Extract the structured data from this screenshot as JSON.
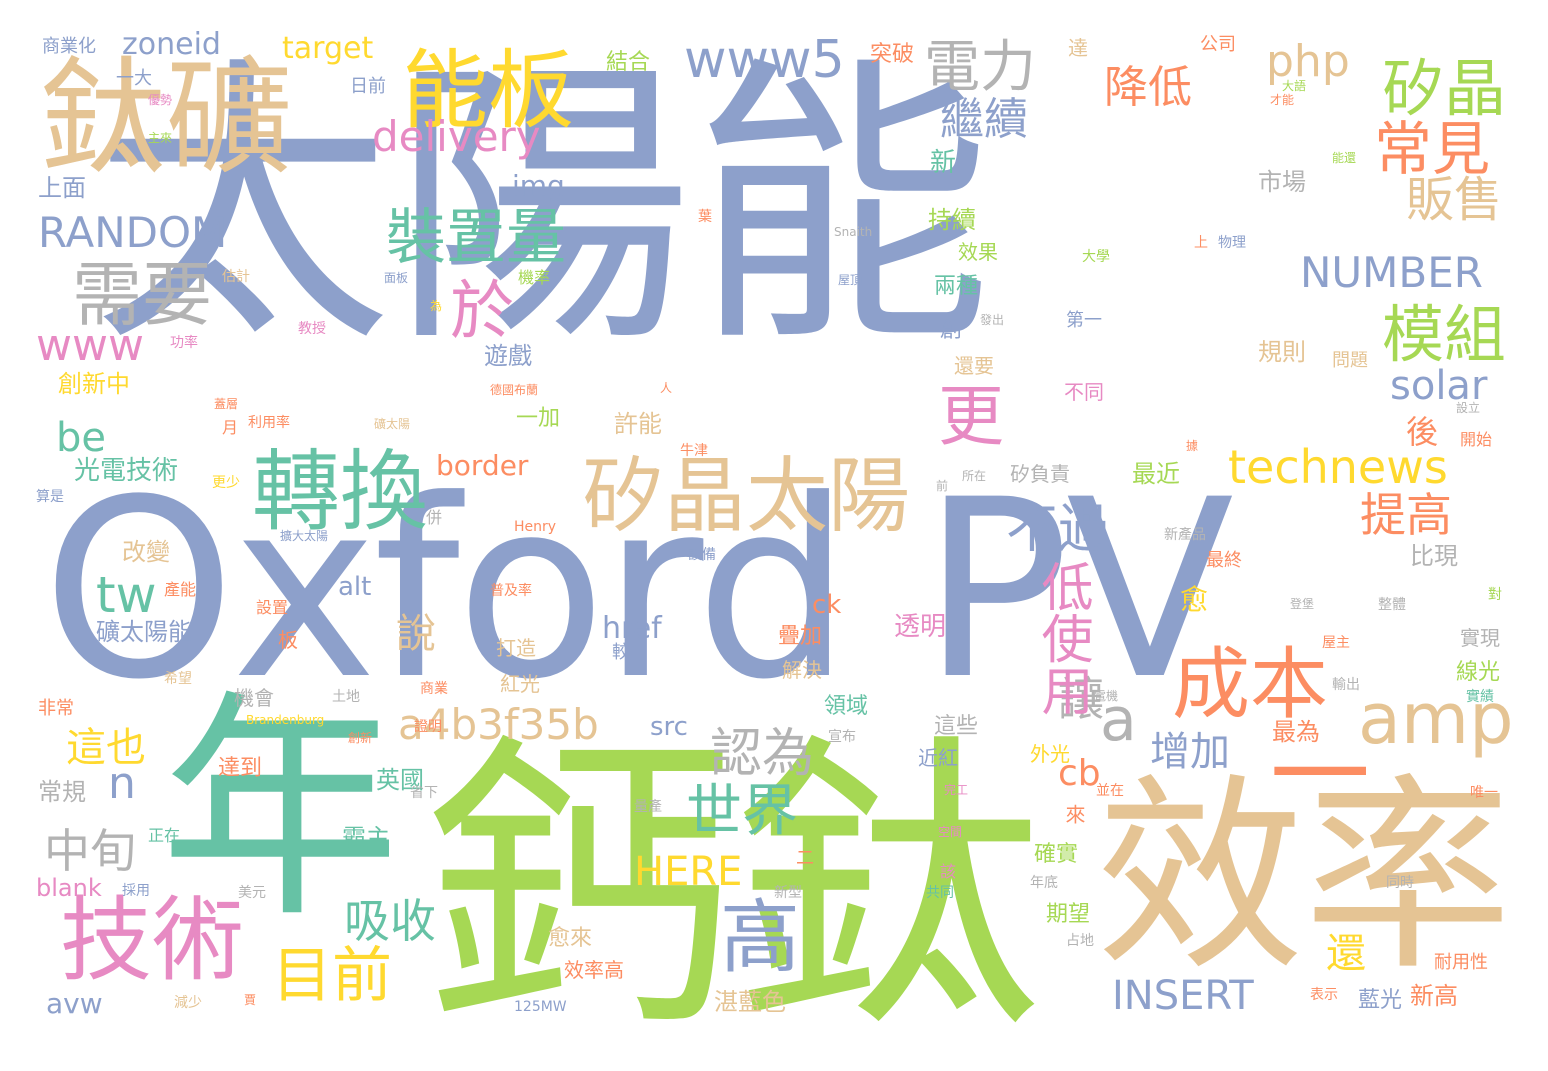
{
  "palette": {
    "blue": "#8DA0CB",
    "green": "#A6D854",
    "teal": "#66C2A5",
    "tan": "#E5C494",
    "orange": "#FC8D62",
    "pink": "#E78AC3",
    "yellow": "#FFD92F",
    "gray": "#B3B3B3"
  },
  "words": [
    {
      "text": "太陽能",
      "color": "blue",
      "orient": "h"
    },
    {
      "text": "Oxford PV",
      "color": "blue",
      "orient": "h"
    },
    {
      "text": "鈣鈦",
      "color": "green",
      "orient": "h"
    },
    {
      "text": "年",
      "color": "teal",
      "orient": "h"
    },
    {
      "text": "效率",
      "color": "tan",
      "orient": "h"
    },
    {
      "text": "一",
      "color": "orange",
      "orient": "h"
    },
    {
      "text": "鈦礦",
      "color": "tan",
      "orient": "h"
    },
    {
      "text": "技術",
      "color": "pink",
      "orient": "h"
    },
    {
      "text": "能板",
      "color": "yellow",
      "orient": "h"
    },
    {
      "text": "矽晶太陽",
      "color": "tan",
      "orient": "h"
    },
    {
      "text": "轉換",
      "color": "teal",
      "orient": "h"
    },
    {
      "text": "成本",
      "color": "orange",
      "orient": "h"
    },
    {
      "text": "需要",
      "color": "gray",
      "orient": "h"
    },
    {
      "text": "高",
      "color": "blue",
      "orient": "h"
    },
    {
      "text": "amp",
      "color": "tan",
      "orient": "h"
    },
    {
      "text": "矽晶",
      "color": "green",
      "orient": "h"
    },
    {
      "text": "www5",
      "color": "blue",
      "orient": "h"
    },
    {
      "text": "電力",
      "color": "gray",
      "orient": "h"
    },
    {
      "text": "裝置量",
      "color": "teal",
      "orient": "h"
    },
    {
      "text": "常見",
      "color": "orange",
      "orient": "h"
    },
    {
      "text": "模組",
      "color": "green",
      "orient": "h"
    },
    {
      "text": "technews",
      "color": "yellow",
      "orient": "h"
    },
    {
      "text": "世界",
      "color": "teal",
      "orient": "h"
    },
    {
      "text": "目前",
      "color": "yellow",
      "orient": "h"
    },
    {
      "text": "認為",
      "color": "gray",
      "orient": "h"
    },
    {
      "text": "a4b3f35b",
      "color": "tan",
      "orient": "h"
    },
    {
      "text": "不過",
      "color": "blue",
      "orient": "h"
    },
    {
      "text": "販售",
      "color": "tan",
      "orient": "h"
    },
    {
      "text": "提高",
      "color": "orange",
      "orient": "h"
    },
    {
      "text": "NUMBER",
      "color": "blue",
      "orient": "h"
    },
    {
      "text": "RANDOM",
      "color": "blue",
      "orient": "h"
    },
    {
      "text": "delivery",
      "color": "pink",
      "orient": "h"
    },
    {
      "text": "吸收",
      "color": "teal",
      "orient": "h"
    },
    {
      "text": "降低",
      "color": "orange",
      "orient": "h"
    },
    {
      "text": "繼續",
      "color": "blue",
      "orient": "h"
    },
    {
      "text": "INSERT",
      "color": "blue",
      "orient": "h"
    },
    {
      "text": "HERE",
      "color": "yellow",
      "orient": "h"
    },
    {
      "text": "增加",
      "color": "blue",
      "orient": "h"
    },
    {
      "text": "中旬",
      "color": "gray",
      "orient": "h"
    },
    {
      "text": "這也",
      "color": "yellow",
      "orient": "h"
    },
    {
      "text": "solar",
      "color": "blue",
      "orient": "h"
    },
    {
      "text": "php",
      "color": "tan",
      "orient": "h"
    },
    {
      "text": "tw",
      "color": "teal",
      "orient": "h"
    },
    {
      "text": "be",
      "color": "teal",
      "orient": "h"
    },
    {
      "text": "www",
      "color": "pink",
      "orient": "h"
    },
    {
      "text": "zoneid",
      "color": "blue",
      "orient": "h"
    },
    {
      "text": "target",
      "color": "yellow",
      "orient": "h"
    },
    {
      "text": "border",
      "color": "orange",
      "orient": "h"
    },
    {
      "text": "光電技術",
      "color": "teal",
      "orient": "h"
    },
    {
      "text": "創新中",
      "color": "yellow",
      "orient": "h"
    },
    {
      "text": "上面",
      "color": "blue",
      "orient": "h"
    },
    {
      "text": "cb",
      "color": "orange",
      "orient": "h"
    },
    {
      "text": "a",
      "color": "gray",
      "orient": "h"
    },
    {
      "text": "n",
      "color": "blue",
      "orient": "h"
    },
    {
      "text": "img",
      "color": "blue",
      "orient": "h"
    },
    {
      "text": "avw",
      "color": "blue",
      "orient": "h"
    },
    {
      "text": "blank",
      "color": "pink",
      "orient": "h"
    },
    {
      "text": "href",
      "color": "blue",
      "orient": "h"
    },
    {
      "text": "alt",
      "color": "blue",
      "orient": "h"
    },
    {
      "text": "src",
      "color": "blue",
      "orient": "h"
    },
    {
      "text": "ck",
      "color": "orange",
      "orient": "h"
    },
    {
      "text": "英國",
      "color": "teal",
      "orient": "h"
    },
    {
      "text": "霸主",
      "color": "teal",
      "orient": "h"
    },
    {
      "text": "常規",
      "color": "gray",
      "orient": "h"
    },
    {
      "text": "改變",
      "color": "tan",
      "orient": "h"
    },
    {
      "text": "礦太陽能",
      "color": "blue",
      "orient": "h"
    },
    {
      "text": "市場",
      "color": "gray",
      "orient": "h"
    },
    {
      "text": "持續",
      "color": "green",
      "orient": "h"
    },
    {
      "text": "效果",
      "color": "green",
      "orient": "h"
    },
    {
      "text": "兩種",
      "color": "teal",
      "orient": "h"
    },
    {
      "text": "遊戲",
      "color": "blue",
      "orient": "h"
    },
    {
      "text": "規則",
      "color": "tan",
      "orient": "h"
    },
    {
      "text": "許能",
      "color": "tan",
      "orient": "h"
    },
    {
      "text": "一加",
      "color": "green",
      "orient": "h"
    },
    {
      "text": "最近",
      "color": "green",
      "orient": "h"
    },
    {
      "text": "比現",
      "color": "gray",
      "orient": "h"
    },
    {
      "text": "線光",
      "color": "green",
      "orient": "h"
    },
    {
      "text": "實現",
      "color": "gray",
      "orient": "h"
    },
    {
      "text": "最為",
      "color": "orange",
      "orient": "h"
    },
    {
      "text": "期望",
      "color": "green",
      "orient": "h"
    },
    {
      "text": "確實",
      "color": "green",
      "orient": "h"
    },
    {
      "text": "這些",
      "color": "gray",
      "orient": "h"
    },
    {
      "text": "近紅",
      "color": "blue",
      "orient": "h"
    },
    {
      "text": "外光",
      "color": "yellow",
      "orient": "h"
    },
    {
      "text": "愈來",
      "color": "tan",
      "orient": "h"
    },
    {
      "text": "效率高",
      "color": "orange",
      "orient": "h"
    },
    {
      "text": "湛藍色",
      "color": "tan",
      "orient": "h"
    },
    {
      "text": "新高",
      "color": "orange",
      "orient": "h"
    },
    {
      "text": "藍光",
      "color": "blue",
      "orient": "h"
    },
    {
      "text": "耐用性",
      "color": "orange",
      "orient": "h"
    },
    {
      "text": "疊加",
      "color": "orange",
      "orient": "h"
    },
    {
      "text": "解決",
      "color": "tan",
      "orient": "h"
    },
    {
      "text": "領域",
      "color": "teal",
      "orient": "h"
    },
    {
      "text": "透明",
      "color": "pink",
      "orient": "h"
    },
    {
      "text": "紅光",
      "color": "tan",
      "orient": "h"
    },
    {
      "text": "打造",
      "color": "tan",
      "orient": "h"
    },
    {
      "text": "達到",
      "color": "orange",
      "orient": "h"
    },
    {
      "text": "還要",
      "color": "tan",
      "orient": "h"
    },
    {
      "text": "不同",
      "color": "pink",
      "orient": "h"
    },
    {
      "text": "問題",
      "color": "tan",
      "orient": "h"
    },
    {
      "text": "第一",
      "color": "blue",
      "orient": "h"
    },
    {
      "text": "最終",
      "color": "orange",
      "orient": "h"
    },
    {
      "text": "矽負責",
      "color": "gray",
      "orient": "h"
    },
    {
      "text": "結合",
      "color": "green",
      "orient": "h"
    },
    {
      "text": "突破",
      "color": "orange",
      "orient": "h"
    },
    {
      "text": "日前",
      "color": "blue",
      "orient": "h"
    },
    {
      "text": "公司",
      "color": "orange",
      "orient": "h"
    },
    {
      "text": "商業化",
      "color": "blue",
      "orient": "h"
    },
    {
      "text": "一大",
      "color": "blue",
      "orient": "h"
    },
    {
      "text": "新",
      "color": "teal",
      "orient": "h"
    },
    {
      "text": "達",
      "color": "tan",
      "orient": "h"
    },
    {
      "text": "非常",
      "color": "orange",
      "orient": "h"
    },
    {
      "text": "機會",
      "color": "gray",
      "orient": "h"
    },
    {
      "text": "土地",
      "color": "gray",
      "orient": "h"
    },
    {
      "text": "商業",
      "color": "orange",
      "orient": "h"
    },
    {
      "text": "希望",
      "color": "tan",
      "orient": "h"
    },
    {
      "text": "設置",
      "color": "orange",
      "orient": "h"
    },
    {
      "text": "產能",
      "color": "orange",
      "orient": "h"
    },
    {
      "text": "普及率",
      "color": "orange",
      "orient": "h"
    },
    {
      "text": "擴大太陽",
      "color": "blue",
      "orient": "h"
    },
    {
      "text": "更少",
      "color": "yellow",
      "orient": "h"
    },
    {
      "text": "算是",
      "color": "blue",
      "orient": "h"
    },
    {
      "text": "Henry",
      "color": "orange",
      "orient": "h"
    },
    {
      "text": "設備",
      "color": "blue",
      "orient": "h"
    },
    {
      "text": "新產品",
      "color": "gray",
      "orient": "h"
    },
    {
      "text": "整體",
      "color": "gray",
      "orient": "h"
    },
    {
      "text": "屋主",
      "color": "orange",
      "orient": "h"
    },
    {
      "text": "輸出",
      "color": "gray",
      "orient": "h"
    },
    {
      "text": "實績",
      "color": "teal",
      "orient": "h"
    },
    {
      "text": "電機",
      "color": "gray",
      "orient": "h"
    },
    {
      "text": "唯一",
      "color": "orange",
      "orient": "h"
    },
    {
      "text": "同時",
      "color": "gray",
      "orient": "h"
    },
    {
      "text": "占地",
      "color": "gray",
      "orient": "h"
    },
    {
      "text": "表示",
      "color": "orange",
      "orient": "h"
    },
    {
      "text": "年底",
      "color": "gray",
      "orient": "h"
    },
    {
      "text": "共同",
      "color": "teal",
      "orient": "h"
    },
    {
      "text": "新型",
      "color": "gray",
      "orient": "h"
    },
    {
      "text": "美元",
      "color": "gray",
      "orient": "h"
    },
    {
      "text": "採用",
      "color": "blue",
      "orient": "h"
    },
    {
      "text": "減少",
      "color": "tan",
      "orient": "h"
    },
    {
      "text": "125MW",
      "color": "blue",
      "orient": "h"
    },
    {
      "text": "正在",
      "color": "teal",
      "orient": "h"
    },
    {
      "text": "省下",
      "color": "gray",
      "orient": "h"
    },
    {
      "text": "宣布",
      "color": "gray",
      "orient": "h"
    },
    {
      "text": "量產",
      "color": "gray",
      "orient": "h"
    },
    {
      "text": "Brandenburg",
      "color": "yellow",
      "orient": "h"
    },
    {
      "text": "證明",
      "color": "orange",
      "orient": "h"
    },
    {
      "text": "Snaith",
      "color": "gray",
      "orient": "h"
    },
    {
      "text": "面板",
      "color": "blue",
      "orient": "h"
    },
    {
      "text": "估計",
      "color": "tan",
      "orient": "h"
    },
    {
      "text": "屋頂",
      "color": "blue",
      "orient": "h"
    },
    {
      "text": "大學",
      "color": "green",
      "orient": "h"
    },
    {
      "text": "物理",
      "color": "blue",
      "orient": "h"
    },
    {
      "text": "發出",
      "color": "gray",
      "orient": "h"
    },
    {
      "text": "教授",
      "color": "pink",
      "orient": "h"
    },
    {
      "text": "功率",
      "color": "pink",
      "orient": "h"
    },
    {
      "text": "機率",
      "color": "green",
      "orient": "h"
    },
    {
      "text": "主來",
      "color": "green",
      "orient": "h"
    },
    {
      "text": "優勢",
      "color": "pink",
      "orient": "h"
    },
    {
      "text": "才能",
      "color": "orange",
      "orient": "h"
    },
    {
      "text": "能還",
      "color": "green",
      "orient": "h"
    },
    {
      "text": "大語",
      "color": "green",
      "orient": "h"
    },
    {
      "text": "開始",
      "color": "orange",
      "orient": "h"
    },
    {
      "text": "設立",
      "color": "gray",
      "orient": "h"
    },
    {
      "text": "牛津",
      "color": "orange",
      "orient": "h"
    },
    {
      "text": "德國布蘭",
      "color": "orange",
      "orient": "h"
    },
    {
      "text": "月",
      "color": "orange",
      "orient": "h"
    },
    {
      "text": "利用率",
      "color": "orange",
      "orient": "h"
    },
    {
      "text": "礦太陽",
      "color": "tan",
      "orient": "h"
    },
    {
      "text": "所在",
      "color": "gray",
      "orient": "h"
    },
    {
      "text": "併",
      "color": "gray",
      "orient": "h"
    },
    {
      "text": "前",
      "color": "gray",
      "orient": "h"
    },
    {
      "text": "人",
      "color": "orange",
      "orient": "h"
    },
    {
      "text": "為",
      "color": "yellow",
      "orient": "h"
    },
    {
      "text": "上",
      "color": "orange",
      "orient": "h"
    },
    {
      "text": "對",
      "color": "green",
      "orient": "h"
    },
    {
      "text": "據",
      "color": "orange",
      "orient": "h"
    },
    {
      "text": "較",
      "color": "blue",
      "orient": "h"
    },
    {
      "text": "板",
      "color": "orange",
      "orient": "h"
    },
    {
      "text": "該",
      "color": "pink",
      "orient": "h"
    },
    {
      "text": "二",
      "color": "orange",
      "orient": "h"
    },
    {
      "text": "葉",
      "color": "orange",
      "orient": "h"
    },
    {
      "text": "賈",
      "color": "orange",
      "orient": "h"
    },
    {
      "text": "登堡",
      "color": "gray",
      "orient": "h"
    },
    {
      "text": "蓋層",
      "color": "orange",
      "orient": "h"
    },
    {
      "text": "創新",
      "color": "orange",
      "orient": "h"
    },
    {
      "text": "空間",
      "color": "pink",
      "orient": "h"
    },
    {
      "text": "完工",
      "color": "pink",
      "orient": "h"
    },
    {
      "text": "並在",
      "color": "orange",
      "orient": "h"
    },
    {
      "text": "來",
      "color": "orange",
      "orient": "v"
    },
    {
      "text": "更",
      "color": "pink",
      "orient": "h"
    },
    {
      "text": "於",
      "color": "pink",
      "orient": "h"
    },
    {
      "text": "讓",
      "color": "gray",
      "orient": "h"
    },
    {
      "text": "說",
      "color": "tan",
      "orient": "h"
    },
    {
      "text": "愈",
      "color": "yellow",
      "orient": "h"
    },
    {
      "text": "還",
      "color": "yellow",
      "orient": "h"
    },
    {
      "text": "後",
      "color": "orange",
      "orient": "h"
    },
    {
      "text": "創",
      "color": "blue",
      "orient": "h"
    },
    {
      "text": "低使用",
      "color": "pink",
      "orient": "v"
    }
  ]
}
